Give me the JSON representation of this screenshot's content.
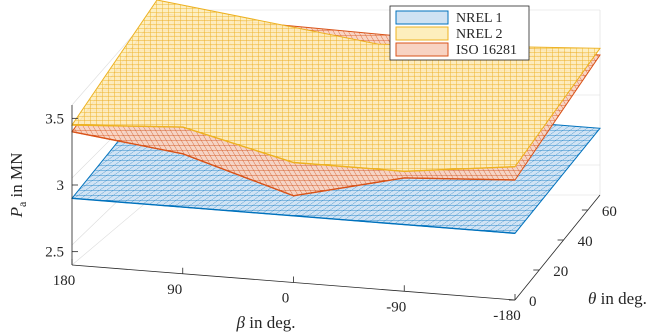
{
  "chart_data": {
    "type": "surface",
    "xlabel_main": "β",
    "xlabel_rest": " in deg.",
    "ylabel_main": "θ",
    "ylabel_rest": " in deg.",
    "zlabel_main": "P",
    "zlabel_sub": "a",
    "zlabel_rest": " in MN",
    "beta_ticks": [
      180,
      90,
      0,
      -90,
      -180
    ],
    "beta_tick_labels": [
      "180",
      "90",
      "0",
      "-90",
      "-180"
    ],
    "theta_ticks": [
      0,
      20,
      40,
      60
    ],
    "theta_tick_labels": [
      "0",
      "20",
      "40",
      "60"
    ],
    "z_ticks": [
      2.5,
      3,
      3.5
    ],
    "z_tick_labels": [
      "2.5",
      "3",
      "3.5"
    ],
    "beta_range": [
      -180,
      180
    ],
    "theta_range": [
      0,
      70
    ],
    "z_range": [
      2.4,
      3.6
    ],
    "grid": true,
    "legend_position": "top-right",
    "series": [
      {
        "name": "NREL 1",
        "color": "#0072bd",
        "fill": "#cfe2f3",
        "values": [
          {
            "theta": 0,
            "beta": 180,
            "pa": 2.9
          },
          {
            "theta": 0,
            "beta": 90,
            "pa": 2.9
          },
          {
            "theta": 0,
            "beta": 0,
            "pa": 2.9
          },
          {
            "theta": 0,
            "beta": -90,
            "pa": 2.9
          },
          {
            "theta": 0,
            "beta": -180,
            "pa": 2.9
          },
          {
            "theta": 70,
            "beta": 180,
            "pa": 2.9
          },
          {
            "theta": 70,
            "beta": -180,
            "pa": 2.9
          }
        ]
      },
      {
        "name": "NREL 2",
        "color": "#edb120",
        "fill": "#fdeebd",
        "values": [
          {
            "theta": 0,
            "beta": 180,
            "pa": 3.45
          },
          {
            "theta": 0,
            "beta": 90,
            "pa": 3.5
          },
          {
            "theta": 0,
            "beta": 0,
            "pa": 3.3
          },
          {
            "theta": 0,
            "beta": -90,
            "pa": 3.3
          },
          {
            "theta": 0,
            "beta": -180,
            "pa": 3.4
          },
          {
            "theta": 70,
            "beta": 180,
            "pa": 3.6
          },
          {
            "theta": 70,
            "beta": 0,
            "pa": 3.4
          },
          {
            "theta": 70,
            "beta": -180,
            "pa": 3.5
          }
        ]
      },
      {
        "name": "ISO 16281",
        "color": "#d95319",
        "fill": "#f8d3c2",
        "values": [
          {
            "theta": 0,
            "beta": 180,
            "pa": 3.4
          },
          {
            "theta": 0,
            "beta": 90,
            "pa": 3.3
          },
          {
            "theta": 0,
            "beta": 0,
            "pa": 3.05
          },
          {
            "theta": 0,
            "beta": -90,
            "pa": 3.25
          },
          {
            "theta": 0,
            "beta": -180,
            "pa": 3.3
          },
          {
            "theta": 70,
            "beta": 180,
            "pa": 3.5
          },
          {
            "theta": 70,
            "beta": -180,
            "pa": 3.45
          }
        ]
      }
    ]
  }
}
